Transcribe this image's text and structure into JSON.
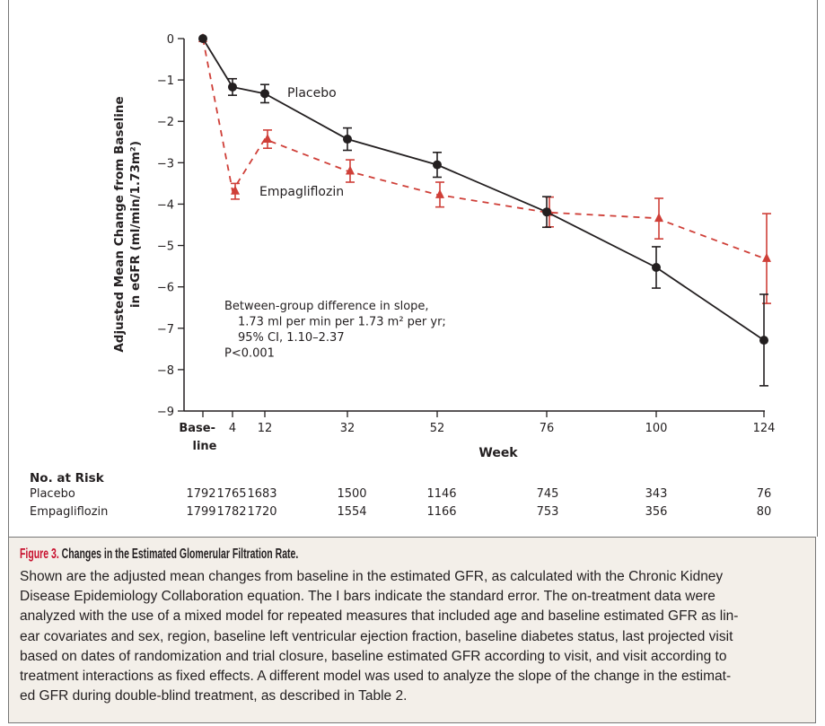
{
  "chart_data": {
    "type": "line",
    "xlabel": "Week",
    "ylabel_lines": [
      "Adjusted Mean Change from Baseline",
      "in eGFR (ml/min/1.73m²)"
    ],
    "x": [
      0,
      4,
      12,
      32,
      52,
      76,
      100,
      124
    ],
    "x_tick_labels": [
      "Base-line",
      "4",
      "12",
      "32",
      "52",
      "76",
      "100",
      "124"
    ],
    "baseline_label_lines": [
      "Base-",
      "line"
    ],
    "ylim": [
      -9,
      0
    ],
    "y_ticks": [
      0,
      -1,
      -2,
      -3,
      -4,
      -5,
      -6,
      -7,
      -8,
      -9
    ],
    "y_tick_labels": [
      "0",
      "−1",
      "−2",
      "−3",
      "−4",
      "−5",
      "−6",
      "−7",
      "−8",
      "−9"
    ],
    "error_bars": "standard error",
    "series": [
      {
        "name": "Placebo",
        "color": "#231f20",
        "marker": "circle",
        "style": "solid",
        "values": [
          0,
          -1.17,
          -1.33,
          -2.43,
          -3.05,
          -4.19,
          -5.53,
          -7.29
        ],
        "lower": [
          0,
          -1.37,
          -1.55,
          -2.7,
          -3.35,
          -4.56,
          -6.03,
          -8.39
        ],
        "upper": [
          0,
          -0.97,
          -1.11,
          -2.16,
          -2.75,
          -3.82,
          -5.03,
          -6.18
        ]
      },
      {
        "name": "Empagliflozin",
        "color": "#cf3f38",
        "marker": "triangle",
        "style": "dashed",
        "values": [
          0,
          -3.68,
          -2.43,
          -3.2,
          -3.77,
          -4.2,
          -4.34,
          -5.31
        ],
        "lower": [
          0,
          -3.88,
          -2.65,
          -3.47,
          -4.07,
          -4.55,
          -4.84,
          -6.4
        ],
        "upper": [
          0,
          -3.5,
          -2.21,
          -2.93,
          -3.47,
          -3.83,
          -3.86,
          -4.23
        ]
      }
    ],
    "series_labels": {
      "placebo": "Placebo",
      "empagliflozin": "Empagliflozin"
    },
    "annotation_lines": [
      "Between-group difference in slope,",
      "1.73 ml per min per 1.73 m² per yr;",
      "95% CI, 1.10–2.37",
      "P<0.001"
    ]
  },
  "risk_table": {
    "title": "No. at Risk",
    "rows": [
      {
        "label": "Placebo",
        "values": [
          "1792",
          "1765",
          "1683",
          "1500",
          "1146",
          "745",
          "343",
          "76"
        ]
      },
      {
        "label": "Empagliflozin",
        "values": [
          "1799",
          "1782",
          "1720",
          "1554",
          "1166",
          "753",
          "356",
          "80"
        ]
      }
    ]
  },
  "caption": {
    "figure_number": "Figure 3.",
    "title": "Changes in the Estimated Glomerular Filtration Rate.",
    "lines": [
      "Shown are the adjusted mean changes from baseline in the estimated GFR, as calculated with the Chronic Kidney",
      "Disease Epidemiology Collaboration equation. The I bars indicate the standard error. The on-treatment data were",
      "analyzed with the use of a mixed model for repeated measures that included age and baseline estimated GFR as lin-",
      "ear covariates and sex, region, baseline left ventricular ejection fraction, baseline diabetes status, last projected visit",
      "based on dates of randomization and trial closure, baseline estimated GFR according to visit, and visit according to",
      "treatment interactions as fixed effects. A different model was used to analyze the slope of the change in the estimat-",
      "ed GFR during double-blind treatment, as described in Table 2."
    ]
  }
}
